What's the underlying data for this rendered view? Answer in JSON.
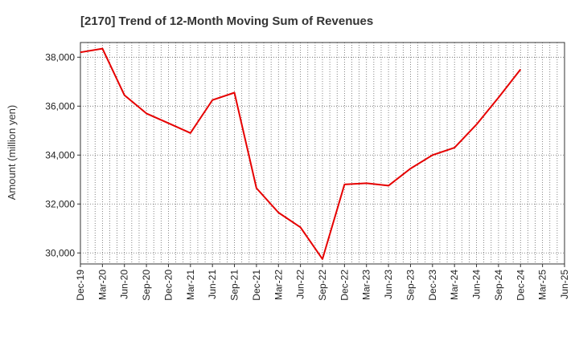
{
  "colors": {
    "line": "#e60000",
    "grid": "#666666",
    "axis": "#333333",
    "text": "#222222"
  },
  "chart_data": {
    "type": "line",
    "title": "[2170]  Trend of 12-Month Moving Sum of Revenues",
    "xlabel": "",
    "ylabel": "Amount (million yen)",
    "ylim": [
      29550,
      38600
    ],
    "y_ticks": [
      30000,
      32000,
      34000,
      36000,
      38000
    ],
    "y_tick_labels": [
      "30,000",
      "32,000",
      "34,000",
      "36,000",
      "38,000"
    ],
    "x_tick_labels": [
      "Dec-19",
      "Mar-20",
      "Jun-20",
      "Sep-20",
      "Dec-20",
      "Mar-21",
      "Jun-21",
      "Sep-21",
      "Dec-21",
      "Mar-22",
      "Jun-22",
      "Sep-22",
      "Dec-22",
      "Mar-23",
      "Jun-23",
      "Sep-23",
      "Dec-23",
      "Mar-24",
      "Jun-24",
      "Sep-24",
      "Dec-24",
      "Mar-25",
      "Jun-25"
    ],
    "grid": true,
    "series": [
      {
        "values": [
          38200,
          38350,
          36450,
          35700,
          35300,
          34900,
          36250,
          36550,
          32650,
          31650,
          31050,
          29750,
          32800,
          32850,
          32750,
          33450,
          34000,
          34300,
          35250,
          36350,
          37500
        ]
      }
    ]
  }
}
